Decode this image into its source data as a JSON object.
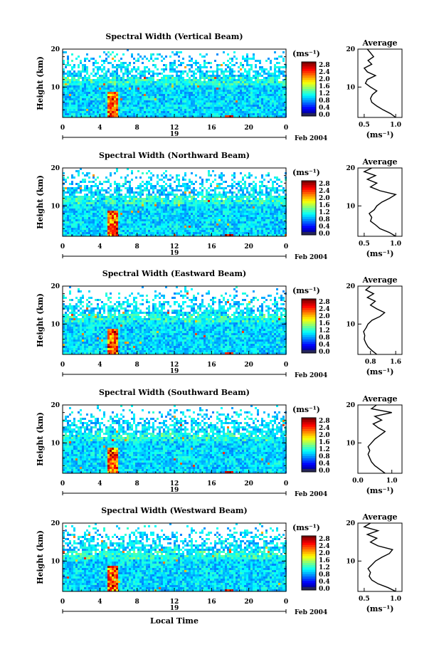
{
  "chart_data": [
    {
      "type": "heatmap",
      "title": "Spectral Width (Vertical Beam)",
      "ylabel": "Height (km)",
      "x_ticks": [
        "0",
        "4",
        "8",
        "12",
        "16",
        "20",
        "0"
      ],
      "y_ticks": [
        "20",
        "10"
      ],
      "date_label": "19",
      "month_label": "Feb 2004",
      "xlim": [
        0,
        24
      ],
      "ylim": [
        2,
        20
      ],
      "colorbar": {
        "unit": "(ms⁻¹)",
        "ticks": [
          "2.8",
          "2.4",
          "2.0",
          "1.6",
          "1.2",
          "0.8",
          "0.4",
          "0.0"
        ]
      },
      "profile": {
        "title": "Average",
        "xlabel": "(ms⁻¹)",
        "x_ticks": [
          "0.5",
          "1.0"
        ],
        "xlim": [
          0.4,
          1.1
        ],
        "y_ticks": [
          "20",
          "10"
        ],
        "height": [
          2,
          3,
          4,
          5,
          6,
          7,
          8,
          9,
          10,
          11,
          12,
          13,
          14,
          15,
          16,
          17,
          18,
          19,
          20
        ],
        "width": [
          1.0,
          0.92,
          0.8,
          0.7,
          0.62,
          0.6,
          0.63,
          0.7,
          0.6,
          0.52,
          0.55,
          0.68,
          0.55,
          0.5,
          0.62,
          0.56,
          0.65,
          0.6,
          0.55
        ]
      }
    },
    {
      "type": "heatmap",
      "title": "Spectral Width (Northward Beam)",
      "ylabel": "Height (km)",
      "x_ticks": [
        "0",
        "4",
        "8",
        "12",
        "16",
        "20",
        "0"
      ],
      "y_ticks": [
        "20",
        "10"
      ],
      "date_label": "19",
      "month_label": "Feb 2004",
      "xlim": [
        0,
        24
      ],
      "ylim": [
        2,
        20
      ],
      "colorbar": {
        "unit": "(ms⁻¹)",
        "ticks": [
          "2.8",
          "2.4",
          "2.0",
          "1.6",
          "1.2",
          "0.8",
          "0.4",
          "0.0"
        ]
      },
      "profile": {
        "title": "Average",
        "xlabel": "(ms⁻¹)",
        "x_ticks": [
          "0.5",
          "1.0"
        ],
        "xlim": [
          0.4,
          1.1
        ],
        "y_ticks": [
          "20",
          "10"
        ],
        "height": [
          2,
          3,
          4,
          5,
          6,
          7,
          8,
          9,
          10,
          11,
          12,
          13,
          14,
          15,
          16,
          17,
          18,
          19,
          20
        ],
        "width": [
          1.0,
          0.9,
          0.75,
          0.68,
          0.6,
          0.62,
          0.58,
          0.66,
          0.7,
          0.78,
          0.9,
          1.0,
          0.75,
          0.6,
          0.7,
          0.55,
          0.68,
          0.5,
          0.62
        ]
      }
    },
    {
      "type": "heatmap",
      "title": "Spectral Width (Eastward Beam)",
      "ylabel": "Height (km)",
      "x_ticks": [
        "0",
        "4",
        "8",
        "12",
        "16",
        "20",
        "0"
      ],
      "y_ticks": [
        "20",
        "10"
      ],
      "date_label": "19",
      "month_label": "Feb 2004",
      "xlim": [
        0,
        24
      ],
      "ylim": [
        2,
        20
      ],
      "colorbar": {
        "unit": "(ms⁻¹)",
        "ticks": [
          "2.8",
          "2.4",
          "2.0",
          "1.6",
          "1.2",
          "0.8",
          "0.4",
          "0.0"
        ]
      },
      "profile": {
        "title": "Average",
        "xlabel": "(ms⁻¹)",
        "x_ticks": [
          "0.8",
          "1.6"
        ],
        "xlim": [
          0.4,
          1.8
        ],
        "y_ticks": [
          "20",
          "10"
        ],
        "height": [
          2,
          3,
          4,
          5,
          6,
          7,
          8,
          9,
          10,
          11,
          12,
          13,
          14,
          15,
          16,
          17,
          18,
          19,
          20
        ],
        "width": [
          1.0,
          0.85,
          0.72,
          0.65,
          0.6,
          0.62,
          0.58,
          0.66,
          0.72,
          0.85,
          1.1,
          1.25,
          1.0,
          0.8,
          0.95,
          0.7,
          0.9,
          0.65,
          0.8
        ]
      }
    },
    {
      "type": "heatmap",
      "title": "Spectral Width (Southward Beam)",
      "ylabel": "Height (km)",
      "x_ticks": [
        "0",
        "4",
        "8",
        "12",
        "16",
        "20",
        "0"
      ],
      "y_ticks": [
        "20",
        "10"
      ],
      "date_label": "19",
      "month_label": "Feb 2004",
      "xlim": [
        0,
        24
      ],
      "ylim": [
        2,
        20
      ],
      "colorbar": {
        "unit": "(ms⁻¹)",
        "ticks": [
          "2.8",
          "2.4",
          "2.0",
          "1.6",
          "1.2",
          "0.8",
          "0.4",
          "0.0"
        ]
      },
      "profile": {
        "title": "Average",
        "xlabel": "(ms⁻¹)",
        "x_ticks": [
          "0.0",
          "1.0"
        ],
        "xlim": [
          0.0,
          1.3
        ],
        "y_ticks": [
          "20",
          "10"
        ],
        "height": [
          2,
          3,
          4,
          5,
          6,
          7,
          8,
          9,
          10,
          11,
          12,
          13,
          14,
          15,
          16,
          17,
          18,
          19,
          20
        ],
        "width": [
          0.8,
          0.65,
          0.5,
          0.4,
          0.35,
          0.3,
          0.35,
          0.3,
          0.4,
          0.5,
          0.65,
          0.8,
          0.6,
          0.45,
          0.7,
          0.5,
          1.0,
          0.4,
          0.55
        ]
      }
    },
    {
      "type": "heatmap",
      "title": "Spectral Width (Westward Beam)",
      "ylabel": "Height (km)",
      "x_ticks": [
        "0",
        "4",
        "8",
        "12",
        "16",
        "20",
        "0"
      ],
      "y_ticks": [
        "20",
        "10"
      ],
      "date_label": "19",
      "month_label": "Feb 2004",
      "xlim": [
        0,
        24
      ],
      "ylim": [
        2,
        20
      ],
      "colorbar": {
        "unit": "(ms⁻¹)",
        "ticks": [
          "2.8",
          "2.4",
          "2.0",
          "1.6",
          "1.2",
          "0.8",
          "0.4",
          "0.0"
        ]
      },
      "profile": {
        "title": "Average",
        "xlabel": "(ms⁻¹)",
        "x_ticks": [
          "0.5",
          "1.0"
        ],
        "xlim": [
          0.4,
          1.1
        ],
        "y_ticks": [
          "20",
          "10"
        ],
        "height": [
          2,
          3,
          4,
          5,
          6,
          7,
          8,
          9,
          10,
          11,
          12,
          13,
          14,
          15,
          16,
          17,
          18,
          19,
          20
        ],
        "width": [
          1.0,
          0.88,
          0.72,
          0.62,
          0.58,
          0.6,
          0.56,
          0.62,
          0.68,
          0.78,
          0.9,
          0.95,
          0.72,
          0.6,
          0.7,
          0.55,
          0.72,
          0.5,
          0.6
        ]
      }
    }
  ],
  "x_axis_label": "Local Time"
}
